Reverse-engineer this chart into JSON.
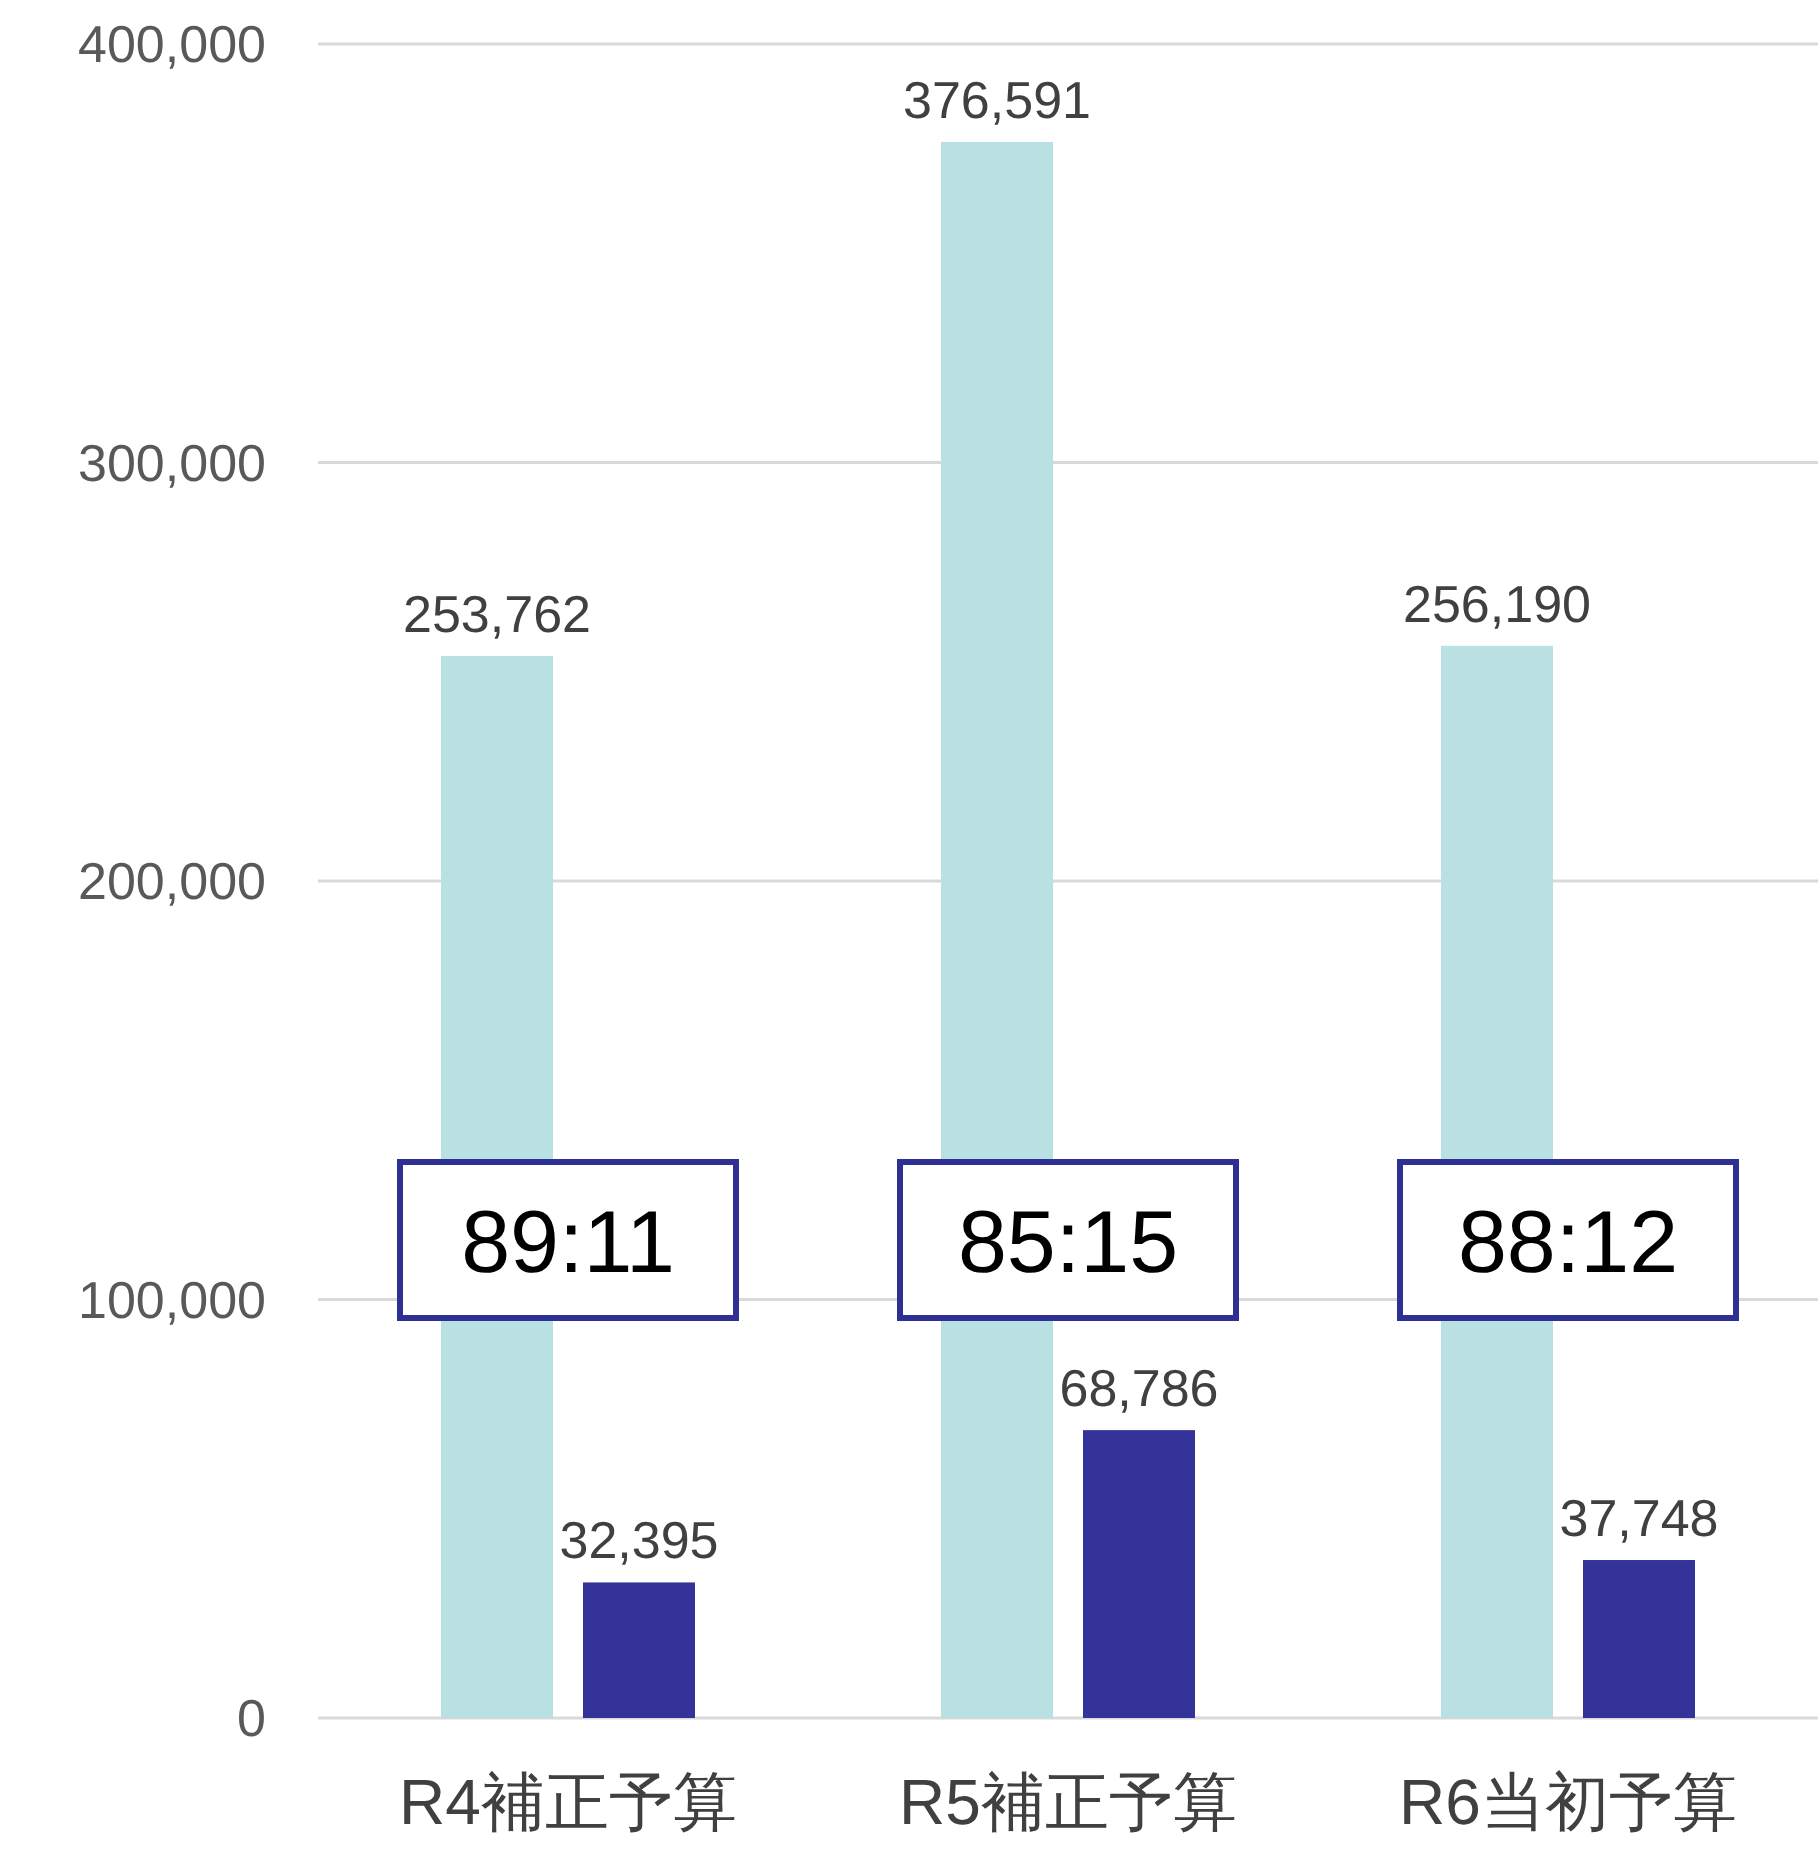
{
  "chart_data": {
    "type": "bar",
    "categories": [
      "R4補正予算",
      "R5補正予算",
      "R6当初予算"
    ],
    "series": [
      {
        "color": "#b9e0e3",
        "values": [
          253762,
          376591,
          256190
        ],
        "value_labels": [
          "253,762",
          "376,591",
          "256,190"
        ]
      },
      {
        "color": "#333399",
        "values": [
          32395,
          68786,
          37748
        ],
        "value_labels": [
          "32,395",
          "68,786",
          "37,748"
        ]
      }
    ],
    "ylim": [
      0,
      400000
    ],
    "yticks": [
      {
        "value": 0,
        "label": "0"
      },
      {
        "value": 100000,
        "label": "100,000"
      },
      {
        "value": 200000,
        "label": "200,000"
      },
      {
        "value": 300000,
        "label": "300,000"
      },
      {
        "value": 400000,
        "label": "400,000"
      }
    ],
    "grid": "y",
    "annotations": [
      "89:11",
      "85:15",
      "88:12"
    ]
  }
}
